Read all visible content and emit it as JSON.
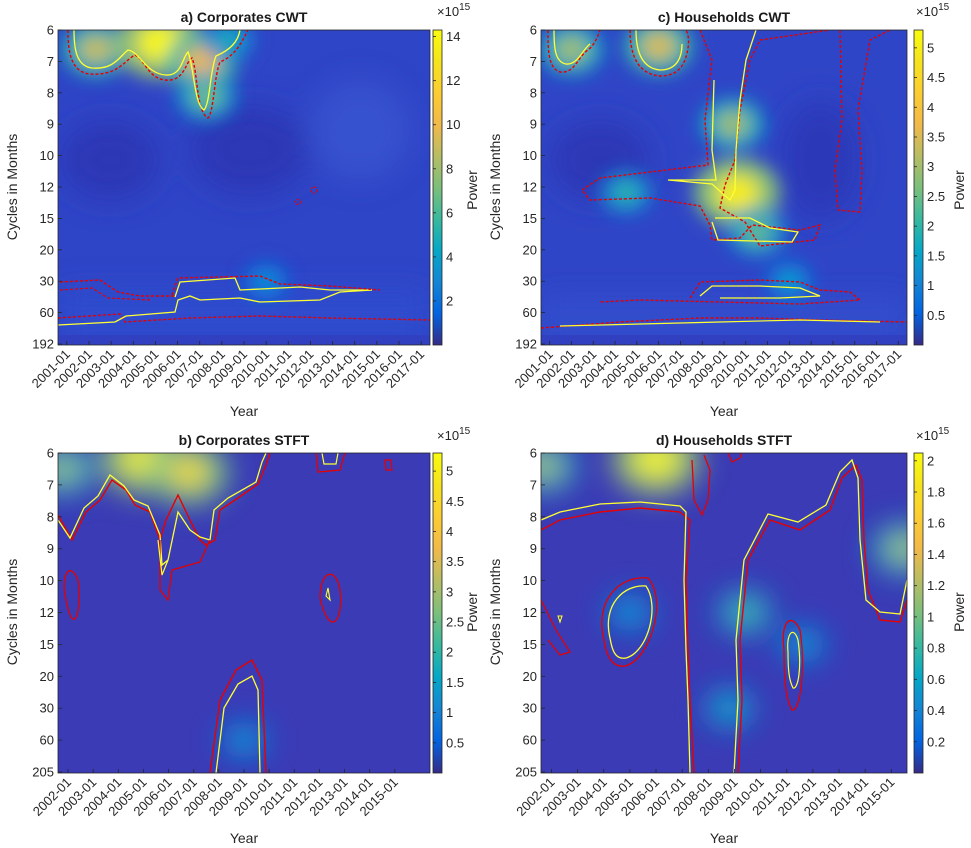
{
  "chart_data": [
    {
      "id": "a",
      "type": "heatmap",
      "title": "a) Corporates CWT",
      "xlabel": "Year",
      "ylabel": "Cycles in Months",
      "colorbar_label": "Power",
      "colorbar_exponent": "×10",
      "colorbar_exponent_power": "15",
      "colorbar_range": [
        0,
        14.3
      ],
      "colorbar_ticks": [
        "2",
        "4",
        "6",
        "8",
        "10",
        "12",
        "14"
      ],
      "colorbar_tick_values": [
        2,
        4,
        6,
        8,
        10,
        12,
        14
      ],
      "y_ticks": [
        "6",
        "7",
        "8",
        "9",
        "10",
        "12",
        "15",
        "20",
        "30",
        "60",
        "192"
      ],
      "x_ticks": [
        "2001-01",
        "2002-01",
        "2003-01",
        "2004-01",
        "2005-01",
        "2006-01",
        "2007-01",
        "2008-01",
        "2009-01",
        "2010-01",
        "2011-01",
        "2012-01",
        "2013-01",
        "2014-01",
        "2015-01",
        "2016-01",
        "2017-01"
      ],
      "x_range": [
        2000.6,
        2017.4
      ],
      "hotspots": [
        {
          "x": 2002.3,
          "period": 6.6,
          "power": 9
        },
        {
          "x": 2005.2,
          "period": 6.4,
          "power": 14
        },
        {
          "x": 2007.1,
          "period": 7.0,
          "power": 10
        },
        {
          "x": 2007.3,
          "period": 8.1,
          "power": 7
        },
        {
          "x": 2008.3,
          "period": 6.3,
          "power": 5
        },
        {
          "x": 2010.0,
          "period": 30,
          "power": 3.5
        }
      ],
      "colormap": "parula"
    },
    {
      "id": "c",
      "type": "heatmap",
      "title": "c) Households CWT",
      "xlabel": "Year",
      "ylabel": "Cycles in Months",
      "colorbar_label": "Power",
      "colorbar_exponent": "×10",
      "colorbar_exponent_power": "15",
      "colorbar_range": [
        0,
        5.3
      ],
      "colorbar_ticks": [
        "0.5",
        "1",
        "1.5",
        "2",
        "2.5",
        "3",
        "3.5",
        "4",
        "4.5",
        "5"
      ],
      "colorbar_tick_values": [
        0.5,
        1,
        1.5,
        2,
        2.5,
        3,
        3.5,
        4,
        4.5,
        5
      ],
      "y_ticks": [
        "6",
        "7",
        "8",
        "9",
        "10",
        "12",
        "15",
        "20",
        "30",
        "60",
        "192"
      ],
      "x_ticks": [
        "2001-01",
        "2002-01",
        "2003-01",
        "2004-01",
        "2005-01",
        "2006-01",
        "2007-01",
        "2008-01",
        "2009-01",
        "2010-01",
        "2011-01",
        "2012-01",
        "2013-01",
        "2014-01",
        "2015-01",
        "2016-01",
        "2017-01"
      ],
      "x_range": [
        2000.6,
        2017.4
      ],
      "hotspots": [
        {
          "x": 2002.0,
          "period": 6.6,
          "power": 3
        },
        {
          "x": 2006.0,
          "period": 6.5,
          "power": 3.5
        },
        {
          "x": 2009.6,
          "period": 12.5,
          "power": 5
        },
        {
          "x": 2009.4,
          "period": 9,
          "power": 3
        },
        {
          "x": 2010.5,
          "period": 17,
          "power": 2.5
        },
        {
          "x": 2004.5,
          "period": 12.5,
          "power": 2
        },
        {
          "x": 2012.0,
          "period": 30,
          "power": 1.5
        }
      ],
      "colormap": "parula"
    },
    {
      "id": "b",
      "type": "heatmap",
      "title": "b) Corporates STFT",
      "xlabel": "Year",
      "ylabel": "Cycles in Months",
      "colorbar_label": "Power",
      "colorbar_exponent": "×10",
      "colorbar_exponent_power": "15",
      "colorbar_range": [
        0,
        5.3
      ],
      "colorbar_ticks": [
        "0.5",
        "1",
        "1.5",
        "2",
        "2.5",
        "3",
        "3.5",
        "4",
        "4.5",
        "5"
      ],
      "colorbar_tick_values": [
        0.5,
        1,
        1.5,
        2,
        2.5,
        3,
        3.5,
        4,
        4.5,
        5
      ],
      "y_ticks": [
        "6",
        "7",
        "8",
        "9",
        "10",
        "12",
        "15",
        "20",
        "30",
        "60",
        "205"
      ],
      "x_ticks": [
        "2002-01",
        "2003-01",
        "2004-01",
        "2005-01",
        "2006-01",
        "2007-01",
        "2008-01",
        "2009-01",
        "2010-01",
        "2011-01",
        "2012-01",
        "2013-01",
        "2014-01",
        "2015-01"
      ],
      "x_range": [
        2001.6,
        2016.4
      ],
      "hotspots": [
        {
          "x": 2001.8,
          "period": 6.5,
          "power": 3
        },
        {
          "x": 2005.0,
          "period": 6.2,
          "power": 5
        },
        {
          "x": 2006.8,
          "period": 6.6,
          "power": 4.5
        },
        {
          "x": 2009.0,
          "period": 60,
          "power": 1.5
        }
      ],
      "colormap": "parula"
    },
    {
      "id": "d",
      "type": "heatmap",
      "title": "d) Households STFT",
      "xlabel": "Year",
      "ylabel": "Cycles in Months",
      "colorbar_label": "Power",
      "colorbar_exponent": "×10",
      "colorbar_exponent_power": "15",
      "colorbar_range": [
        0,
        2.05
      ],
      "colorbar_ticks": [
        "0.2",
        "0.4",
        "0.6",
        "0.8",
        "1",
        "1.2",
        "1.4",
        "1.6",
        "1.8",
        "2"
      ],
      "colorbar_tick_values": [
        0.2,
        0.4,
        0.6,
        0.8,
        1,
        1.2,
        1.4,
        1.6,
        1.8,
        2
      ],
      "y_ticks": [
        "6",
        "7",
        "8",
        "9",
        "10",
        "12",
        "15",
        "20",
        "30",
        "60",
        "205"
      ],
      "x_ticks": [
        "2002-01",
        "2003-01",
        "2004-01",
        "2005-01",
        "2006-01",
        "2007-01",
        "2008-01",
        "2009-01",
        "2010-01",
        "2011-01",
        "2012-01",
        "2013-01",
        "2014-01",
        "2015-01"
      ],
      "x_range": [
        2001.6,
        2015.6
      ],
      "hotspots": [
        {
          "x": 2001.7,
          "period": 6.4,
          "power": 1.2
        },
        {
          "x": 2006.0,
          "period": 6.2,
          "power": 2.0
        },
        {
          "x": 2009.4,
          "period": 12,
          "power": 0.9
        },
        {
          "x": 2008.8,
          "period": 30,
          "power": 0.7
        },
        {
          "x": 2015.5,
          "period": 9,
          "power": 1.2
        },
        {
          "x": 2005.0,
          "period": 12,
          "power": 0.6
        },
        {
          "x": 2011.6,
          "period": 15,
          "power": 0.6
        }
      ],
      "colormap": "parula"
    }
  ]
}
